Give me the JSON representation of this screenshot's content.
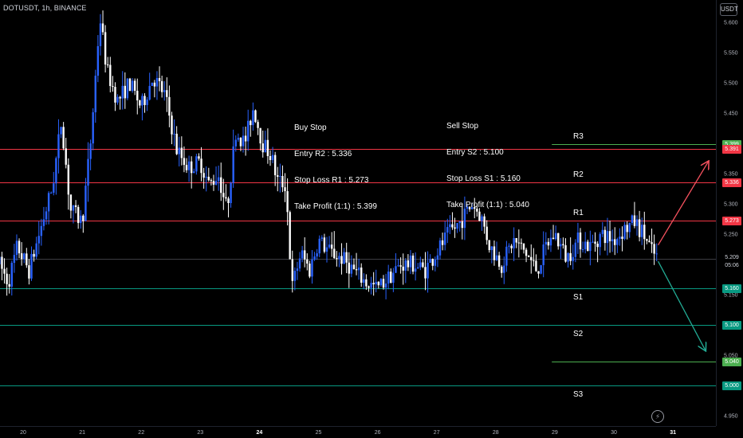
{
  "header": {
    "symbol": "DOTUSDT, 1h, BINANCE",
    "currency": "USDT"
  },
  "colors": {
    "background": "#000000",
    "bull": "#2962ff",
    "bear": "#ffffff",
    "resistance": "#f23645",
    "support": "#089981",
    "tp_up": "#4caf50",
    "current": "#787b86",
    "arrow_up": "#f7525f",
    "arrow_down": "#22ab94"
  },
  "notes": {
    "buy": [
      "Buy Stop",
      "Entry R2 : 5.336",
      "Stop Loss R1 : 5.273",
      "Take Profit (1:1) : 5.399"
    ],
    "sell": [
      "Sell Stop",
      "Entry S2 : 5.100",
      "Stop Loss S1 : 5.160",
      "Take Profit (1:1) : 5.040"
    ]
  },
  "levels": [
    {
      "name": "R3",
      "price": 5.399,
      "tag": "5.399",
      "color": "#4caf50",
      "kind": "tp",
      "from": 5.36
    },
    {
      "name": "",
      "price": 5.391,
      "tag": "5.391",
      "color": "#f23645",
      "kind": "res"
    },
    {
      "name": "R2",
      "price": 5.336,
      "tag": "5.336",
      "color": "#f23645",
      "kind": "res"
    },
    {
      "name": "R1",
      "price": 5.273,
      "tag": "5.273",
      "color": "#f23645",
      "kind": "res"
    },
    {
      "name": "S1",
      "price": 5.16,
      "tag": "5.160",
      "color": "#089981",
      "kind": "sup"
    },
    {
      "name": "S2",
      "price": 5.1,
      "tag": "5.100",
      "color": "#089981",
      "kind": "sup"
    },
    {
      "name": "",
      "price": 5.04,
      "tag": "5.040",
      "color": "#4caf50",
      "kind": "tp",
      "from": 5.36
    },
    {
      "name": "S3",
      "price": 5.0,
      "tag": "5.000",
      "color": "#089981",
      "kind": "sup"
    }
  ],
  "current": {
    "price": 5.209,
    "tag": "5.209",
    "countdown": "05:06"
  },
  "chart_data": {
    "type": "candlestick",
    "symbol": "DOTUSDT",
    "interval": "1h",
    "exchange": "BINANCE",
    "ylim": [
      4.94,
      5.63
    ],
    "x_ticks": [
      {
        "label": "20",
        "day": 20.0
      },
      {
        "label": "21",
        "day": 21.0
      },
      {
        "label": "22",
        "day": 22.0
      },
      {
        "label": "23",
        "day": 23.0
      },
      {
        "label": "24",
        "day": 24.0
      },
      {
        "label": "25",
        "day": 25.0
      },
      {
        "label": "26",
        "day": 26.0
      },
      {
        "label": "27",
        "day": 27.0
      },
      {
        "label": "28",
        "day": 28.0
      },
      {
        "label": "29",
        "day": 29.0
      },
      {
        "label": "30",
        "day": 30.0
      },
      {
        "label": "31",
        "day": 31.0
      }
    ],
    "y_ticks": [
      5.6,
      5.55,
      5.5,
      5.45,
      5.35,
      5.3,
      5.25,
      5.15,
      5.05,
      4.95
    ],
    "close_path": [
      [
        19.6,
        5.2
      ],
      [
        19.75,
        5.17
      ],
      [
        19.9,
        5.23
      ],
      [
        20.1,
        5.19
      ],
      [
        20.3,
        5.26
      ],
      [
        20.5,
        5.33
      ],
      [
        20.65,
        5.44
      ],
      [
        20.8,
        5.29
      ],
      [
        21.0,
        5.27
      ],
      [
        21.15,
        5.41
      ],
      [
        21.3,
        5.61
      ],
      [
        21.42,
        5.52
      ],
      [
        21.6,
        5.47
      ],
      [
        21.8,
        5.5
      ],
      [
        22.0,
        5.46
      ],
      [
        22.2,
        5.51
      ],
      [
        22.4,
        5.48
      ],
      [
        22.6,
        5.39
      ],
      [
        22.8,
        5.36
      ],
      [
        23.0,
        5.37
      ],
      [
        23.15,
        5.33
      ],
      [
        23.3,
        5.35
      ],
      [
        23.45,
        5.29
      ],
      [
        23.6,
        5.42
      ],
      [
        23.75,
        5.4
      ],
      [
        23.9,
        5.46
      ],
      [
        24.05,
        5.4
      ],
      [
        24.2,
        5.38
      ],
      [
        24.3,
        5.34
      ],
      [
        24.45,
        5.33
      ],
      [
        24.55,
        5.16
      ],
      [
        24.7,
        5.22
      ],
      [
        24.85,
        5.19
      ],
      [
        25.0,
        5.24
      ],
      [
        25.2,
        5.22
      ],
      [
        25.4,
        5.21
      ],
      [
        25.6,
        5.19
      ],
      [
        25.8,
        5.17
      ],
      [
        26.0,
        5.16
      ],
      [
        26.2,
        5.18
      ],
      [
        26.4,
        5.2
      ],
      [
        26.6,
        5.2
      ],
      [
        26.8,
        5.19
      ],
      [
        27.0,
        5.22
      ],
      [
        27.2,
        5.25
      ],
      [
        27.4,
        5.27
      ],
      [
        27.6,
        5.3
      ],
      [
        27.75,
        5.28
      ],
      [
        27.9,
        5.23
      ],
      [
        28.1,
        5.2
      ],
      [
        28.3,
        5.24
      ],
      [
        28.5,
        5.22
      ],
      [
        28.7,
        5.19
      ],
      [
        28.85,
        5.23
      ],
      [
        29.0,
        5.25
      ],
      [
        29.2,
        5.21
      ],
      [
        29.4,
        5.24
      ],
      [
        29.6,
        5.23
      ],
      [
        29.8,
        5.25
      ],
      [
        30.0,
        5.24
      ],
      [
        30.2,
        5.26
      ],
      [
        30.35,
        5.27
      ],
      [
        30.5,
        5.25
      ],
      [
        30.65,
        5.22
      ],
      [
        30.75,
        5.21
      ]
    ],
    "forecast_arrows": [
      {
        "from": [
          30.75,
          5.232
        ],
        "to": [
          31.6,
          5.37
        ],
        "direction": "up"
      },
      {
        "from": [
          30.75,
          5.205
        ],
        "to": [
          31.55,
          5.058
        ],
        "direction": "down"
      }
    ]
  }
}
